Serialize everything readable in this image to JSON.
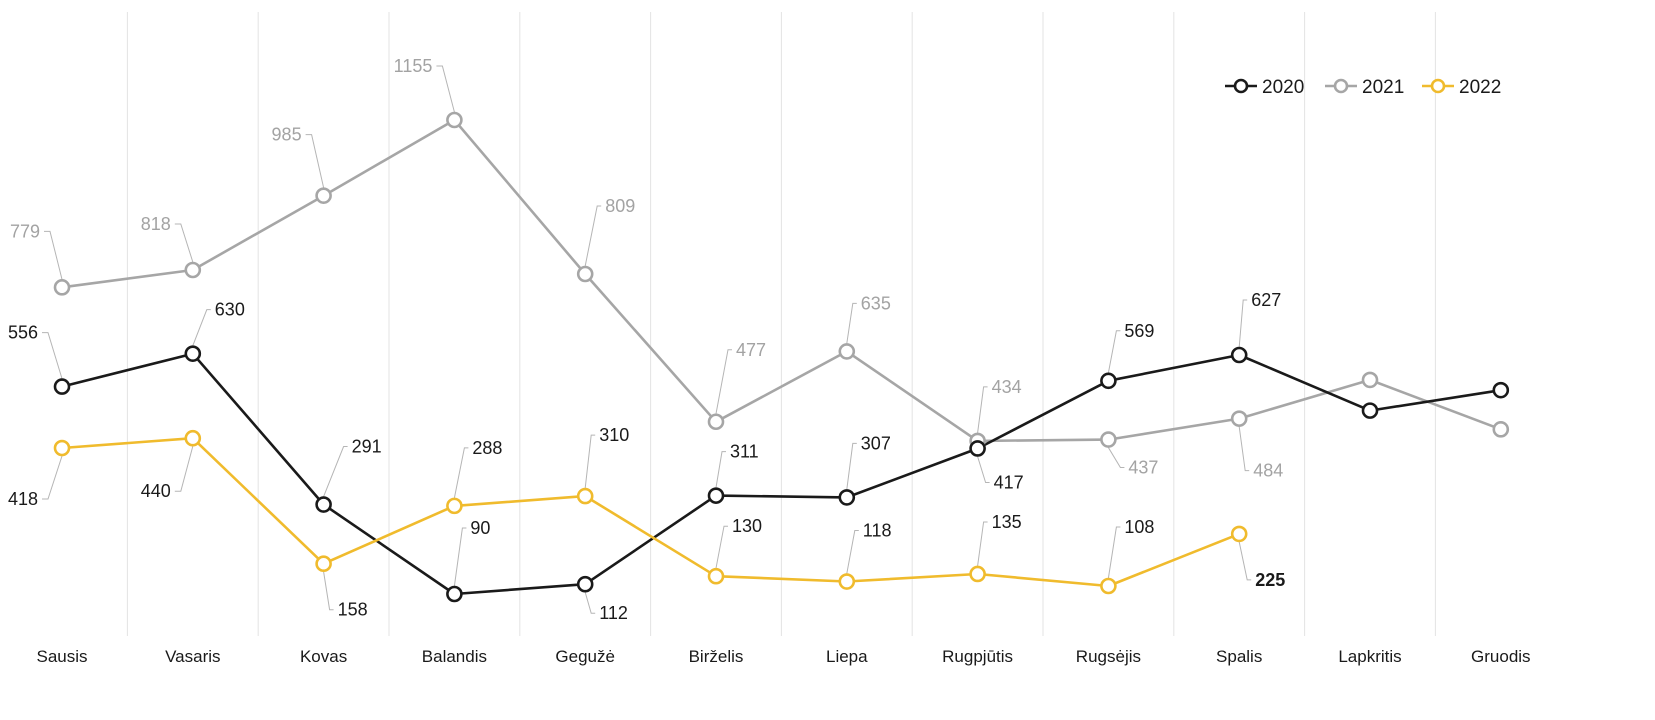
{
  "chart_data": {
    "type": "line",
    "categories": [
      "Sausis",
      "Vasaris",
      "Kovas",
      "Balandis",
      "Gegužė",
      "Birželis",
      "Liepa",
      "Rugpjūtis",
      "Rugsėjis",
      "Spalis",
      "Lapkritis",
      "Gruodis"
    ],
    "series": [
      {
        "name": "2020",
        "color": "#1a1a1a",
        "values": [
          556,
          630,
          291,
          90,
          112,
          311,
          307,
          417,
          569,
          627,
          502,
          548
        ]
      },
      {
        "name": "2021",
        "color": "#a6a6a6",
        "values": [
          779,
          818,
          985,
          1155,
          809,
          477,
          635,
          434,
          437,
          484,
          571,
          460
        ]
      },
      {
        "name": "2022",
        "color": "#f0bb2d",
        "values": [
          418,
          440,
          158,
          288,
          310,
          130,
          118,
          135,
          108,
          225,
          null,
          null
        ]
      }
    ],
    "data_labels": [
      {
        "series": "2021",
        "index": 0,
        "text": "779"
      },
      {
        "series": "2021",
        "index": 1,
        "text": "818"
      },
      {
        "series": "2021",
        "index": 2,
        "text": "985"
      },
      {
        "series": "2021",
        "index": 3,
        "text": "1155"
      },
      {
        "series": "2021",
        "index": 4,
        "text": "809"
      },
      {
        "series": "2021",
        "index": 5,
        "text": "477"
      },
      {
        "series": "2021",
        "index": 6,
        "text": "635"
      },
      {
        "series": "2021",
        "index": 7,
        "text": "434"
      },
      {
        "series": "2021",
        "index": 8,
        "text": "437"
      },
      {
        "series": "2021",
        "index": 9,
        "text": "484"
      },
      {
        "series": "2020",
        "index": 0,
        "text": "556"
      },
      {
        "series": "2020",
        "index": 1,
        "text": "630"
      },
      {
        "series": "2020",
        "index": 2,
        "text": "291"
      },
      {
        "series": "2020",
        "index": 3,
        "text": "90"
      },
      {
        "series": "2020",
        "index": 4,
        "text": "112"
      },
      {
        "series": "2020",
        "index": 5,
        "text": "311"
      },
      {
        "series": "2020",
        "index": 6,
        "text": "307"
      },
      {
        "series": "2020",
        "index": 7,
        "text": "417"
      },
      {
        "series": "2020",
        "index": 8,
        "text": "569"
      },
      {
        "series": "2020",
        "index": 9,
        "text": "627"
      },
      {
        "series": "2022",
        "index": 0,
        "text": "418"
      },
      {
        "series": "2022",
        "index": 1,
        "text": "440"
      },
      {
        "series": "2022",
        "index": 2,
        "text": "158"
      },
      {
        "series": "2022",
        "index": 3,
        "text": "288"
      },
      {
        "series": "2022",
        "index": 4,
        "text": "310"
      },
      {
        "series": "2022",
        "index": 5,
        "text": "130"
      },
      {
        "series": "2022",
        "index": 6,
        "text": "118"
      },
      {
        "series": "2022",
        "index": 7,
        "text": "135"
      },
      {
        "series": "2022",
        "index": 8,
        "text": "108"
      },
      {
        "series": "2022",
        "index": 9,
        "text": "225"
      }
    ],
    "title": "",
    "xlabel": "",
    "ylabel": "",
    "grid": "vertical",
    "legend": "top-right"
  }
}
